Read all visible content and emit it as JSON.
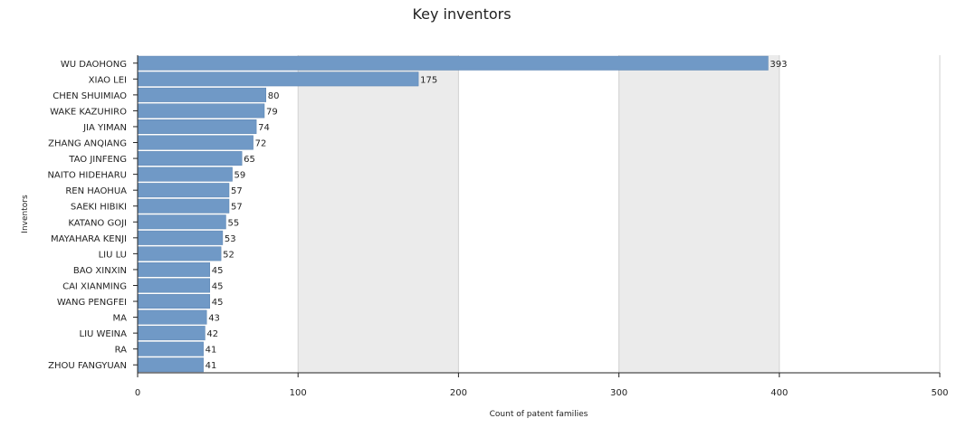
{
  "chart_data": {
    "type": "bar",
    "orientation": "horizontal",
    "title": "Key inventors",
    "xlabel": "Count of patent families",
    "ylabel": "Inventors",
    "xlim": [
      0,
      500
    ],
    "xticks": [
      "0",
      "100",
      "200",
      "300",
      "400",
      "500"
    ],
    "grid": true,
    "categories": [
      "WU DAOHONG",
      "XIAO LEI",
      "CHEN SHUIMIAO",
      "WAKE KAZUHIRO",
      "JIA YIMAN",
      "ZHANG ANQIANG",
      "TAO JINFENG",
      "NAITO HIDEHARU",
      "REN HAOHUA",
      "SAEKI HIBIKI",
      "KATANO GOJI",
      "MAYAHARA KENJI",
      "LIU LU",
      "BAO XINXIN",
      "CAI XIANMING",
      "WANG PENGFEI",
      "MA",
      "LIU WEINA",
      "RA",
      "ZHOU FANGYUAN"
    ],
    "values": [
      393,
      175,
      80,
      79,
      74,
      72,
      65,
      59,
      57,
      57,
      55,
      53,
      52,
      45,
      45,
      45,
      43,
      42,
      41,
      41
    ],
    "bar_color": "#7099c6",
    "band_color": "#ebebeb"
  }
}
